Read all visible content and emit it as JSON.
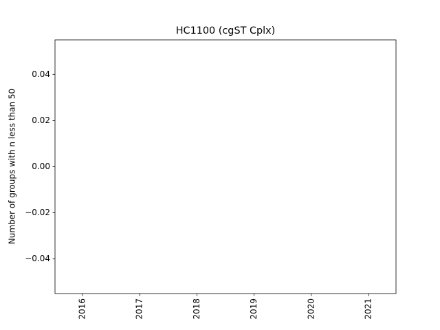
{
  "chart_data": {
    "type": "line",
    "title": "HC1100 (cgST Cplx)",
    "ylabel": "Number of groups with n less than 50",
    "categories": [
      "2016",
      "2017",
      "2018",
      "2019",
      "2020",
      "2021"
    ],
    "series": [],
    "ylim": [
      -0.055,
      0.055
    ],
    "yticks": [
      {
        "value": -0.04,
        "label": "−0.04"
      },
      {
        "value": -0.02,
        "label": "−0.02"
      },
      {
        "value": 0,
        "label": "0.00"
      },
      0.02,
      0.04
    ],
    "grid": false
  }
}
